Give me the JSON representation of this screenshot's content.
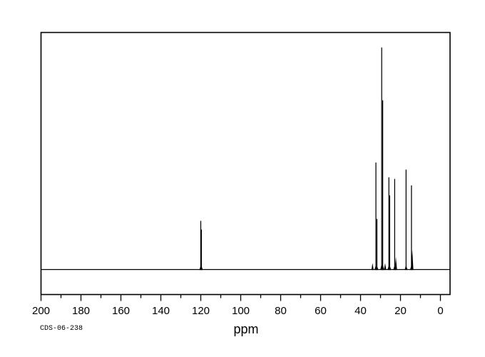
{
  "footer": {
    "sample_id": "CDS-06-238"
  },
  "colors": {
    "foreground": "#000000",
    "background": "#ffffff"
  },
  "chart_data": {
    "type": "line",
    "subtype": "13C NMR spectrum",
    "title": "",
    "xlabel": "ppm",
    "ylabel": "",
    "grid": false,
    "x_axis": {
      "min": 0,
      "max": 200,
      "major_tick_step": 20,
      "minor_tick_step": 10,
      "direction": "reversed",
      "tick_labels": [
        "200",
        "180",
        "160",
        "140",
        "120",
        "100",
        "80",
        "60",
        "40",
        "20",
        "0"
      ]
    },
    "y_axis": {
      "visible": false,
      "note": "no y scale shown; intensities relative to tallest peak = 1.0"
    },
    "peaks": [
      {
        "ppm": 120.0,
        "rel_intensity": 0.219
      },
      {
        "ppm": 119.7,
        "rel_intensity": 0.18
      },
      {
        "ppm": 34.0,
        "rel_intensity": 0.029
      },
      {
        "ppm": 32.3,
        "rel_intensity": 0.482
      },
      {
        "ppm": 31.8,
        "rel_intensity": 0.228
      },
      {
        "ppm": 29.4,
        "rel_intensity": 1.0
      },
      {
        "ppm": 28.9,
        "rel_intensity": 0.762
      },
      {
        "ppm": 27.7,
        "rel_intensity": 0.029
      },
      {
        "ppm": 25.8,
        "rel_intensity": 0.415
      },
      {
        "ppm": 25.4,
        "rel_intensity": 0.334
      },
      {
        "ppm": 22.9,
        "rel_intensity": 0.408
      },
      {
        "ppm": 22.3,
        "rel_intensity": 0.058
      },
      {
        "ppm": 17.2,
        "rel_intensity": 0.45
      },
      {
        "ppm": 14.5,
        "rel_intensity": 0.379
      },
      {
        "ppm": 14.1,
        "rel_intensity": 0.09
      }
    ],
    "annotations": [
      "CDS-06-238"
    ]
  }
}
